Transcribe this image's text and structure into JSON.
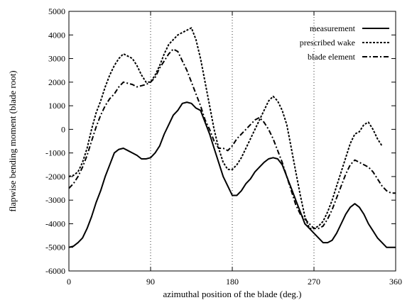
{
  "chart_data": {
    "type": "line",
    "title": "",
    "xlabel": "azimuthal position of the blade (deg.)",
    "ylabel": "flapwise bending moment (blade root)",
    "xlim": [
      0,
      360
    ],
    "ylim": [
      -6000,
      5000
    ],
    "xticks": [
      0,
      90,
      180,
      270,
      360
    ],
    "yticks": [
      -6000,
      -5000,
      -4000,
      -3000,
      -2000,
      -1000,
      0,
      1000,
      2000,
      3000,
      4000,
      5000
    ],
    "xtick_labels": [
      "0",
      "90",
      "180",
      "270",
      "360"
    ],
    "ytick_labels": [
      "-6000",
      "-5000",
      "-4000",
      "-3000",
      "-2000",
      "-1000",
      "0",
      "1000",
      "2000",
      "3000",
      "4000",
      "5000"
    ],
    "grid": {
      "vertical": true,
      "horizontal": false,
      "style": "dotted"
    },
    "legend_position": "top-right",
    "series": [
      {
        "name": "measurement",
        "dash": "solid",
        "width": 2,
        "x": [
          0,
          5,
          10,
          15,
          20,
          25,
          30,
          35,
          40,
          45,
          50,
          55,
          60,
          65,
          70,
          75,
          80,
          85,
          90,
          95,
          100,
          105,
          110,
          115,
          120,
          125,
          130,
          135,
          140,
          145,
          150,
          155,
          160,
          165,
          170,
          175,
          180,
          185,
          190,
          195,
          200,
          205,
          210,
          215,
          220,
          225,
          230,
          235,
          240,
          245,
          250,
          255,
          260,
          265,
          270,
          275,
          280,
          285,
          290,
          295,
          300,
          305,
          310,
          315,
          320,
          325,
          330,
          335,
          340,
          345,
          350,
          355,
          360
        ],
        "y": [
          -5000,
          -4950,
          -4800,
          -4600,
          -4200,
          -3700,
          -3100,
          -2600,
          -2000,
          -1500,
          -1000,
          -850,
          -800,
          -900,
          -1000,
          -1100,
          -1250,
          -1250,
          -1200,
          -1000,
          -700,
          -200,
          200,
          600,
          800,
          1100,
          1150,
          1100,
          900,
          800,
          300,
          -200,
          -800,
          -1400,
          -2000,
          -2400,
          -2800,
          -2800,
          -2600,
          -2300,
          -2100,
          -1800,
          -1600,
          -1400,
          -1250,
          -1200,
          -1250,
          -1500,
          -2000,
          -2500,
          -3000,
          -3500,
          -4000,
          -4200,
          -4400,
          -4600,
          -4800,
          -4800,
          -4700,
          -4400,
          -4000,
          -3600,
          -3300,
          -3150,
          -3300,
          -3600,
          -4000,
          -4300,
          -4600,
          -4800,
          -5000,
          -5000,
          -5000
        ]
      },
      {
        "name": "prescribed wake",
        "dash": "dotted",
        "width": 2,
        "x": [
          0,
          5,
          10,
          15,
          20,
          25,
          30,
          35,
          40,
          45,
          50,
          55,
          60,
          65,
          70,
          75,
          80,
          85,
          90,
          95,
          100,
          105,
          110,
          115,
          120,
          125,
          130,
          135,
          140,
          145,
          150,
          155,
          160,
          165,
          170,
          175,
          180,
          185,
          190,
          195,
          200,
          205,
          210,
          215,
          220,
          225,
          230,
          235,
          240,
          245,
          250,
          255,
          260,
          265,
          270,
          275,
          280,
          285,
          290,
          295,
          300,
          305,
          310,
          315,
          320,
          325,
          330,
          335,
          340,
          345
        ],
        "y": [
          -2000,
          -1950,
          -1800,
          -1400,
          -800,
          0,
          700,
          1200,
          1800,
          2300,
          2700,
          3000,
          3200,
          3100,
          3000,
          2700,
          2300,
          2000,
          2000,
          2300,
          2700,
          3200,
          3600,
          3800,
          4000,
          4100,
          4200,
          4300,
          3800,
          3000,
          2000,
          1000,
          0,
          -800,
          -1400,
          -1700,
          -1700,
          -1500,
          -1200,
          -800,
          -400,
          0,
          400,
          800,
          1200,
          1400,
          1200,
          800,
          200,
          -800,
          -1800,
          -2800,
          -3700,
          -4200,
          -4200,
          -4100,
          -3900,
          -3500,
          -3000,
          -2400,
          -1800,
          -1200,
          -600,
          -200,
          -100,
          200,
          300,
          0,
          -400,
          -700
        ]
      },
      {
        "name": "blade element",
        "dash": "dashdot",
        "width": 2,
        "x": [
          0,
          5,
          10,
          15,
          20,
          25,
          30,
          35,
          40,
          45,
          50,
          55,
          60,
          65,
          70,
          75,
          80,
          85,
          90,
          95,
          100,
          105,
          110,
          115,
          120,
          125,
          130,
          135,
          140,
          145,
          150,
          155,
          160,
          165,
          170,
          175,
          180,
          185,
          190,
          195,
          200,
          205,
          210,
          215,
          220,
          225,
          230,
          235,
          240,
          245,
          250,
          255,
          260,
          265,
          270,
          275,
          280,
          285,
          290,
          295,
          300,
          305,
          310,
          315,
          320,
          325,
          330,
          335,
          340,
          345,
          350,
          355,
          360
        ],
        "y": [
          -2500,
          -2300,
          -2000,
          -1600,
          -1100,
          -500,
          100,
          600,
          1000,
          1300,
          1500,
          1800,
          2000,
          1950,
          1900,
          1800,
          1850,
          1900,
          2000,
          2200,
          2600,
          2900,
          3200,
          3400,
          3300,
          2900,
          2500,
          2000,
          1500,
          1000,
          400,
          0,
          -500,
          -800,
          -800,
          -900,
          -700,
          -400,
          -200,
          0,
          200,
          400,
          500,
          300,
          0,
          -400,
          -900,
          -1400,
          -2000,
          -2600,
          -3200,
          -3600,
          -3800,
          -4000,
          -4200,
          -4200,
          -4100,
          -3800,
          -3400,
          -2900,
          -2400,
          -1900,
          -1500,
          -1300,
          -1400,
          -1500,
          -1600,
          -1800,
          -2100,
          -2400,
          -2600,
          -2700,
          -2700
        ]
      }
    ]
  }
}
